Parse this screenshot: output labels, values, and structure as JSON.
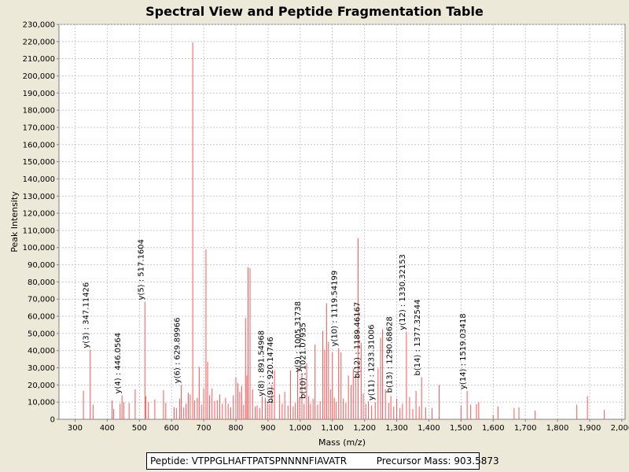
{
  "chart_data": {
    "type": "bar",
    "title": "Spectral View and Peptide Fragmentation Table",
    "xlabel": "Mass (m/z)",
    "ylabel": "Peak Intensity",
    "xlim": [
      250,
      2010
    ],
    "ylim": [
      0,
      230000
    ],
    "x_ticks": [
      300,
      400,
      500,
      600,
      700,
      800,
      900,
      1000,
      1100,
      1200,
      1300,
      1400,
      1500,
      1600,
      1700,
      1800,
      1900,
      2000
    ],
    "x_tick_labels": [
      "300",
      "400",
      "500",
      "600",
      "700",
      "800",
      "900",
      "1,000",
      "1,100",
      "1,200",
      "1,300",
      "1,400",
      "1,500",
      "1,600",
      "1,700",
      "1,800",
      "1,900",
      "2,000"
    ],
    "y_ticks": [
      0,
      10000,
      20000,
      30000,
      40000,
      50000,
      60000,
      70000,
      80000,
      90000,
      100000,
      110000,
      120000,
      130000,
      140000,
      150000,
      160000,
      170000,
      180000,
      190000,
      200000,
      210000,
      220000,
      230000
    ],
    "y_tick_labels": [
      "0",
      "10,000",
      "20,000",
      "30,000",
      "40,000",
      "50,000",
      "60,000",
      "70,000",
      "80,000",
      "90,000",
      "100,000",
      "110,000",
      "120,000",
      "130,000",
      "140,000",
      "150,000",
      "160,000",
      "170,000",
      "180,000",
      "190,000",
      "200,000",
      "210,000",
      "220,000",
      "230,000"
    ],
    "grid": true,
    "peak_color": "#ff5555",
    "peaks": [
      {
        "mz": 326,
        "intensity": 16500
      },
      {
        "mz": 347.1,
        "intensity": 40500
      },
      {
        "mz": 356,
        "intensity": 8500
      },
      {
        "mz": 415,
        "intensity": 11000
      },
      {
        "mz": 420,
        "intensity": 6000
      },
      {
        "mz": 440,
        "intensity": 9000
      },
      {
        "mz": 446.1,
        "intensity": 14000
      },
      {
        "mz": 452,
        "intensity": 10000
      },
      {
        "mz": 468,
        "intensity": 9500
      },
      {
        "mz": 487,
        "intensity": 17500
      },
      {
        "mz": 517.2,
        "intensity": 68500
      },
      {
        "mz": 520,
        "intensity": 13500
      },
      {
        "mz": 528,
        "intensity": 10000
      },
      {
        "mz": 548,
        "intensity": 11500
      },
      {
        "mz": 575,
        "intensity": 17000
      },
      {
        "mz": 582,
        "intensity": 9500
      },
      {
        "mz": 608,
        "intensity": 7000
      },
      {
        "mz": 615,
        "intensity": 6500
      },
      {
        "mz": 625,
        "intensity": 12000
      },
      {
        "mz": 630,
        "intensity": 20000
      },
      {
        "mz": 638,
        "intensity": 7000
      },
      {
        "mz": 645,
        "intensity": 9000
      },
      {
        "mz": 652,
        "intensity": 15500
      },
      {
        "mz": 658,
        "intensity": 14500
      },
      {
        "mz": 666,
        "intensity": 219500
      },
      {
        "mz": 672,
        "intensity": 11000
      },
      {
        "mz": 680,
        "intensity": 12500
      },
      {
        "mz": 686,
        "intensity": 30500
      },
      {
        "mz": 693,
        "intensity": 8500
      },
      {
        "mz": 700,
        "intensity": 18000
      },
      {
        "mz": 707,
        "intensity": 99000
      },
      {
        "mz": 712,
        "intensity": 33500
      },
      {
        "mz": 718,
        "intensity": 14000
      },
      {
        "mz": 726,
        "intensity": 18000
      },
      {
        "mz": 734,
        "intensity": 10500
      },
      {
        "mz": 742,
        "intensity": 11000
      },
      {
        "mz": 750,
        "intensity": 14500
      },
      {
        "mz": 758,
        "intensity": 9000
      },
      {
        "mz": 768,
        "intensity": 12500
      },
      {
        "mz": 776,
        "intensity": 9000
      },
      {
        "mz": 784,
        "intensity": 7000
      },
      {
        "mz": 792,
        "intensity": 14000
      },
      {
        "mz": 800,
        "intensity": 24500
      },
      {
        "mz": 806,
        "intensity": 21000
      },
      {
        "mz": 812,
        "intensity": 16000
      },
      {
        "mz": 818,
        "intensity": 19500
      },
      {
        "mz": 824,
        "intensity": 8500
      },
      {
        "mz": 830,
        "intensity": 59000
      },
      {
        "mz": 834,
        "intensity": 25500
      },
      {
        "mz": 838,
        "intensity": 88500
      },
      {
        "mz": 844,
        "intensity": 88000
      },
      {
        "mz": 852,
        "intensity": 17500
      },
      {
        "mz": 860,
        "intensity": 7500
      },
      {
        "mz": 866,
        "intensity": 8000
      },
      {
        "mz": 874,
        "intensity": 6500
      },
      {
        "mz": 882,
        "intensity": 13500
      },
      {
        "mz": 891.5,
        "intensity": 12500
      },
      {
        "mz": 898,
        "intensity": 10000
      },
      {
        "mz": 905,
        "intensity": 9000
      },
      {
        "mz": 912,
        "intensity": 20000
      },
      {
        "mz": 920.1,
        "intensity": 28500
      },
      {
        "mz": 936,
        "intensity": 14500
      },
      {
        "mz": 944,
        "intensity": 9000
      },
      {
        "mz": 952,
        "intensity": 16000
      },
      {
        "mz": 962,
        "intensity": 8000
      },
      {
        "mz": 970,
        "intensity": 28500
      },
      {
        "mz": 978,
        "intensity": 7500
      },
      {
        "mz": 985,
        "intensity": 9500
      },
      {
        "mz": 992,
        "intensity": 30000
      },
      {
        "mz": 998,
        "intensity": 12500
      },
      {
        "mz": 1005.3,
        "intensity": 26500
      },
      {
        "mz": 1012,
        "intensity": 9000
      },
      {
        "mz": 1020,
        "intensity": 32500
      },
      {
        "mz": 1026,
        "intensity": 13500
      },
      {
        "mz": 1032,
        "intensity": 9000
      },
      {
        "mz": 1040,
        "intensity": 12000
      },
      {
        "mz": 1046,
        "intensity": 43500
      },
      {
        "mz": 1054,
        "intensity": 8500
      },
      {
        "mz": 1062,
        "intensity": 10500
      },
      {
        "mz": 1070,
        "intensity": 51500
      },
      {
        "mz": 1076,
        "intensity": 40500
      },
      {
        "mz": 1082,
        "intensity": 67500
      },
      {
        "mz": 1088,
        "intensity": 45000
      },
      {
        "mz": 1094,
        "intensity": 17500
      },
      {
        "mz": 1100,
        "intensity": 39000
      },
      {
        "mz": 1106,
        "intensity": 12500
      },
      {
        "mz": 1112,
        "intensity": 10000
      },
      {
        "mz": 1119.5,
        "intensity": 41500
      },
      {
        "mz": 1127,
        "intensity": 39000
      },
      {
        "mz": 1134,
        "intensity": 12000
      },
      {
        "mz": 1142,
        "intensity": 9500
      },
      {
        "mz": 1150,
        "intensity": 25500
      },
      {
        "mz": 1158,
        "intensity": 20000
      },
      {
        "mz": 1165,
        "intensity": 29500
      },
      {
        "mz": 1172,
        "intensity": 26500
      },
      {
        "mz": 1180,
        "intensity": 105500
      },
      {
        "mz": 1189.5,
        "intensity": 44500
      },
      {
        "mz": 1196,
        "intensity": 15000
      },
      {
        "mz": 1204,
        "intensity": 9000
      },
      {
        "mz": 1212,
        "intensity": 10500
      },
      {
        "mz": 1222,
        "intensity": 8000
      },
      {
        "mz": 1233.3,
        "intensity": 10000
      },
      {
        "mz": 1242,
        "intensity": 29500
      },
      {
        "mz": 1250,
        "intensity": 47500
      },
      {
        "mz": 1256,
        "intensity": 52500
      },
      {
        "mz": 1265,
        "intensity": 17500
      },
      {
        "mz": 1275,
        "intensity": 9500
      },
      {
        "mz": 1282,
        "intensity": 13500
      },
      {
        "mz": 1290.7,
        "intensity": 7500
      },
      {
        "mz": 1300,
        "intensity": 12000
      },
      {
        "mz": 1310,
        "intensity": 6500
      },
      {
        "mz": 1318,
        "intensity": 9000
      },
      {
        "mz": 1330.3,
        "intensity": 51000
      },
      {
        "mz": 1340,
        "intensity": 13000
      },
      {
        "mz": 1350,
        "intensity": 6000
      },
      {
        "mz": 1360,
        "intensity": 16500
      },
      {
        "mz": 1370,
        "intensity": 7500
      },
      {
        "mz": 1377.3,
        "intensity": 24500
      },
      {
        "mz": 1390,
        "intensity": 7000
      },
      {
        "mz": 1410,
        "intensity": 6500
      },
      {
        "mz": 1432,
        "intensity": 20000
      },
      {
        "mz": 1500,
        "intensity": 8000
      },
      {
        "mz": 1519,
        "intensity": 16500
      },
      {
        "mz": 1530,
        "intensity": 8500
      },
      {
        "mz": 1548,
        "intensity": 9000
      },
      {
        "mz": 1555,
        "intensity": 10000
      },
      {
        "mz": 1600,
        "intensity": 2500
      },
      {
        "mz": 1615,
        "intensity": 7500
      },
      {
        "mz": 1665,
        "intensity": 6500
      },
      {
        "mz": 1680,
        "intensity": 7000
      },
      {
        "mz": 1730,
        "intensity": 5000
      },
      {
        "mz": 1860,
        "intensity": 8500
      },
      {
        "mz": 1893,
        "intensity": 13500
      },
      {
        "mz": 1945,
        "intensity": 5500
      }
    ],
    "annotations": [
      {
        "mz": 347.1,
        "intensity": 40500,
        "label": "y(3) : 347.11426"
      },
      {
        "mz": 446.1,
        "intensity": 14000,
        "label": "y(4) : 446.0564"
      },
      {
        "mz": 517.2,
        "intensity": 68500,
        "label": "y(5) : 517.1604"
      },
      {
        "mz": 629.9,
        "intensity": 20000,
        "label": "y(6) : 629.89966"
      },
      {
        "mz": 891.5,
        "intensity": 12500,
        "label": "y(8) : 891.54968"
      },
      {
        "mz": 920.1,
        "intensity": 8500,
        "label": "b(9) : 920.14746"
      },
      {
        "mz": 1005.3,
        "intensity": 26500,
        "label": "y(9) : 1005.31738"
      },
      {
        "mz": 1021.1,
        "intensity": 11000,
        "label": "b(10) : 1021.07935"
      },
      {
        "mz": 1119.5,
        "intensity": 41500,
        "label": "y(10) : 1119.54199"
      },
      {
        "mz": 1189.5,
        "intensity": 23000,
        "label": "b(12) : 1189.46167"
      },
      {
        "mz": 1233.3,
        "intensity": 10000,
        "label": "y(11) : 1233.31006"
      },
      {
        "mz": 1290.7,
        "intensity": 14500,
        "label": "b(13) : 1290.68628"
      },
      {
        "mz": 1330.3,
        "intensity": 51000,
        "label": "y(12) : 1330.32153"
      },
      {
        "mz": 1377.3,
        "intensity": 24500,
        "label": "b(14) : 1377.32544"
      },
      {
        "mz": 1519,
        "intensity": 16500,
        "label": "y(14) : 1519.03418"
      }
    ]
  },
  "footer": {
    "peptide": "Peptide: VTPPGLHAFTPATSPNNNNFIAVATR",
    "precursor": "Precursor Mass: 903.5873"
  }
}
